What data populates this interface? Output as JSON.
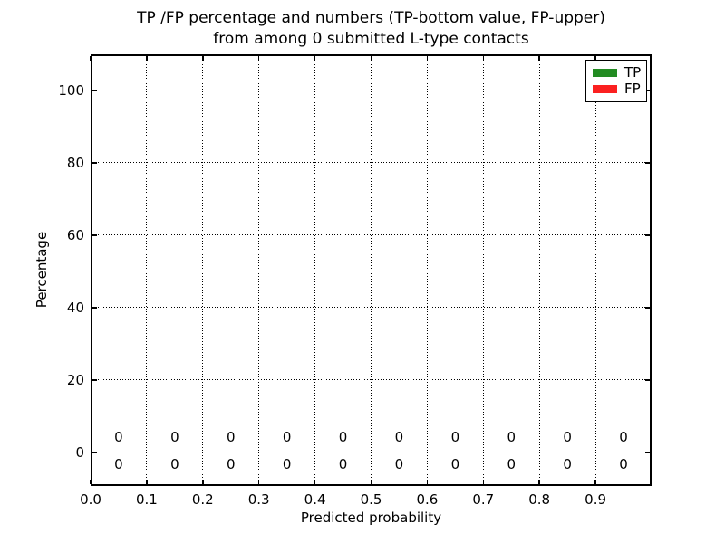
{
  "chart_data": {
    "type": "bar",
    "title_line1": "TP /FP percentage and numbers (TP-bottom value, FP-upper)",
    "title_line2": "from among 0 submitted L-type contacts",
    "xlabel": "Predicted probability",
    "ylabel": "Percentage",
    "xlim": [
      0.0,
      1.0
    ],
    "ylim": [
      -9.3,
      110.0
    ],
    "xticks": [
      0.0,
      0.1,
      0.2,
      0.3,
      0.4,
      0.5,
      0.6,
      0.7,
      0.8,
      0.9
    ],
    "xtick_labels": [
      "0.0",
      "0.1",
      "0.2",
      "0.3",
      "0.4",
      "0.5",
      "0.6",
      "0.7",
      "0.8",
      "0.9"
    ],
    "yticks": [
      0,
      20,
      40,
      60,
      80,
      100
    ],
    "ytick_labels": [
      "0",
      "20",
      "40",
      "60",
      "80",
      "100"
    ],
    "bin_centers": [
      0.05,
      0.15,
      0.25,
      0.35,
      0.45,
      0.55,
      0.65,
      0.75,
      0.85,
      0.95
    ],
    "series": [
      {
        "name": "TP",
        "color": "#228b22",
        "values": [
          0,
          0,
          0,
          0,
          0,
          0,
          0,
          0,
          0,
          0
        ],
        "count_label_row": "bottom"
      },
      {
        "name": "FP",
        "color": "#fb2020",
        "values": [
          0,
          0,
          0,
          0,
          0,
          0,
          0,
          0,
          0,
          0
        ],
        "count_label_row": "upper"
      }
    ],
    "grid": {
      "style": "dotted",
      "color": "#000000"
    },
    "legend": {
      "position": "upper right",
      "entries": [
        {
          "label": "TP",
          "color": "#228b22"
        },
        {
          "label": "FP",
          "color": "#fb2020"
        }
      ]
    },
    "background": "#ffffff",
    "total_submitted_contacts": 0
  }
}
